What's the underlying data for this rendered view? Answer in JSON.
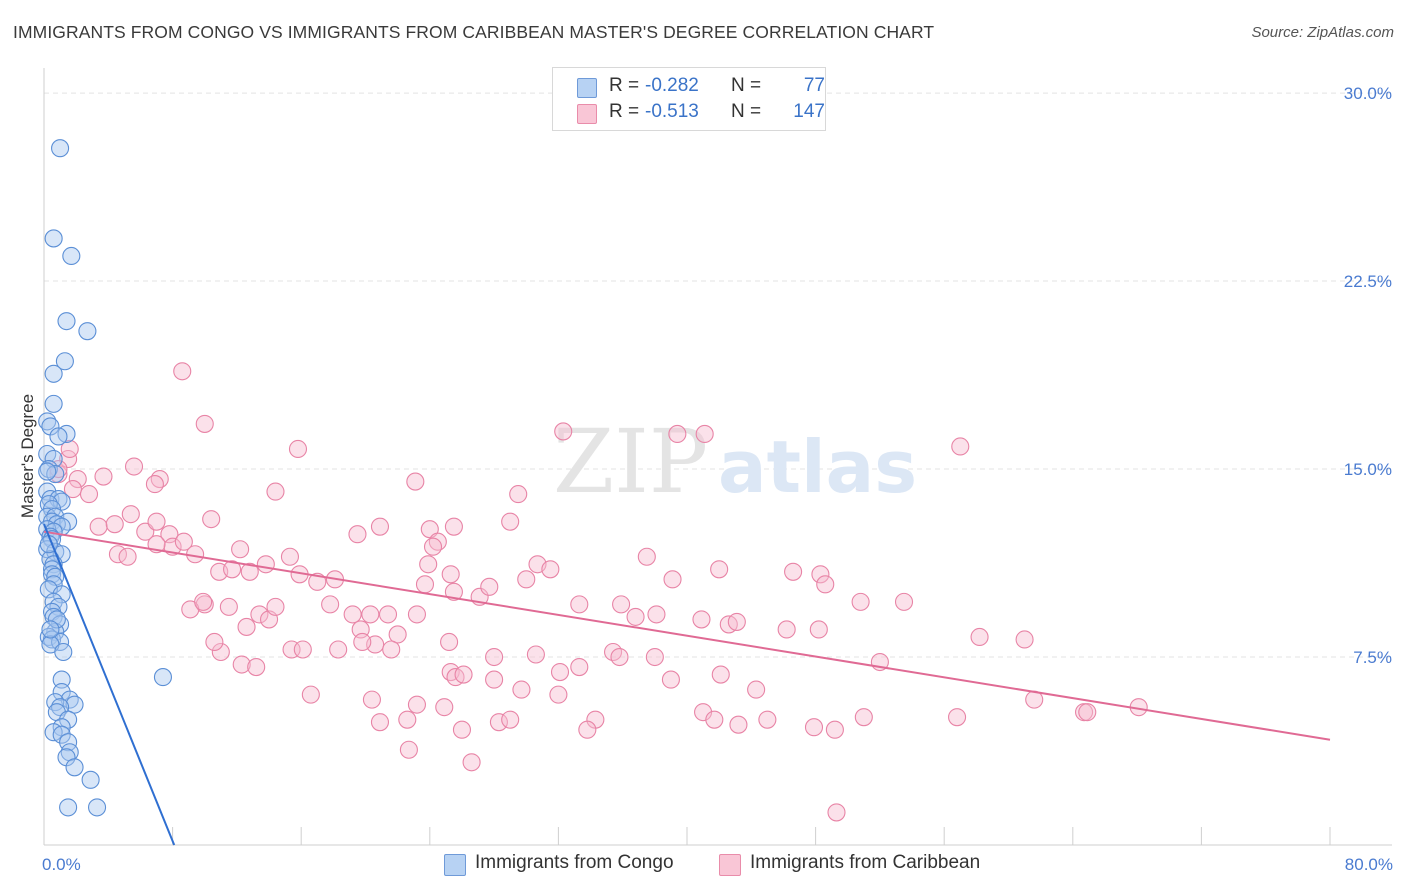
{
  "title": "IMMIGRANTS FROM CONGO VS IMMIGRANTS FROM CARIBBEAN MASTER'S DEGREE CORRELATION CHART",
  "source": "Source: ZipAtlas.com",
  "watermark": {
    "zip": "ZIP",
    "atlas": "atlas"
  },
  "legend_top": {
    "series1": {
      "r_label": "R =",
      "r_value": "-0.282",
      "n_label": "N =",
      "n_value": "77"
    },
    "series2": {
      "r_label": "R =",
      "r_value": "-0.513",
      "n_label": "N =",
      "n_value": "147"
    }
  },
  "legend_bottom": {
    "series1": "Immigrants from Congo",
    "series2": "Immigrants from Caribbean"
  },
  "colors": {
    "congo_fill": "#a9c8f0",
    "congo_stroke": "#5b8fd6",
    "congo_line": "#2f6fd1",
    "carib_fill": "#f7bcd0",
    "carib_stroke": "#e884a6",
    "carib_line": "#e06a94",
    "grid": "#e3e3e3",
    "tick_text": "#4a7bd0"
  },
  "chart_data": {
    "type": "scatter",
    "title": "IMMIGRANTS FROM CONGO VS IMMIGRANTS FROM CARIBBEAN MASTER'S DEGREE CORRELATION CHART",
    "xlabel": "",
    "ylabel": "Master's Degree",
    "xlim": [
      0,
      80
    ],
    "ylim": [
      0,
      31
    ],
    "x_tick_labels": [
      {
        "value": 0,
        "label": "0.0%"
      },
      {
        "value": 80,
        "label": "80.0%"
      }
    ],
    "y_tick_labels": [
      {
        "value": 7.5,
        "label": "7.5%"
      },
      {
        "value": 15,
        "label": "15.0%"
      },
      {
        "value": 22.5,
        "label": "22.5%"
      },
      {
        "value": 30,
        "label": "30.0%"
      }
    ],
    "x_minor_ticks": [
      0,
      8,
      16,
      24,
      32,
      40,
      48,
      56,
      64,
      72,
      80
    ],
    "y_gridlines": [
      7.5,
      15,
      22.5,
      30
    ],
    "series": [
      {
        "name": "Immigrants from Congo",
        "r": -0.282,
        "n": 77,
        "trend": {
          "x": [
            0,
            8.1
          ],
          "y": [
            12.8,
            0
          ]
        },
        "points": [
          [
            1.0,
            27.8
          ],
          [
            0.6,
            24.2
          ],
          [
            1.7,
            23.5
          ],
          [
            1.4,
            20.9
          ],
          [
            2.7,
            20.5
          ],
          [
            1.3,
            19.3
          ],
          [
            0.6,
            18.8
          ],
          [
            0.6,
            17.6
          ],
          [
            0.2,
            16.9
          ],
          [
            0.4,
            16.7
          ],
          [
            1.4,
            16.4
          ],
          [
            0.9,
            16.3
          ],
          [
            0.2,
            15.6
          ],
          [
            0.6,
            15.4
          ],
          [
            0.3,
            15.0
          ],
          [
            0.7,
            14.8
          ],
          [
            0.2,
            14.1
          ],
          [
            0.4,
            13.8
          ],
          [
            0.9,
            13.8
          ],
          [
            1.1,
            13.7
          ],
          [
            0.3,
            13.6
          ],
          [
            0.5,
            13.4
          ],
          [
            0.2,
            13.1
          ],
          [
            0.7,
            13.1
          ],
          [
            0.5,
            12.9
          ],
          [
            1.5,
            12.9
          ],
          [
            0.8,
            12.8
          ],
          [
            1.1,
            12.7
          ],
          [
            0.2,
            12.6
          ],
          [
            0.6,
            12.5
          ],
          [
            0.4,
            12.3
          ],
          [
            0.5,
            12.2
          ],
          [
            0.2,
            11.8
          ],
          [
            0.7,
            11.7
          ],
          [
            1.1,
            11.6
          ],
          [
            0.4,
            11.4
          ],
          [
            0.6,
            11.2
          ],
          [
            0.5,
            11.0
          ],
          [
            0.5,
            10.8
          ],
          [
            0.7,
            10.7
          ],
          [
            0.6,
            10.4
          ],
          [
            0.3,
            10.2
          ],
          [
            1.1,
            10.0
          ],
          [
            0.6,
            9.7
          ],
          [
            0.9,
            9.5
          ],
          [
            0.5,
            9.3
          ],
          [
            0.6,
            9.1
          ],
          [
            1.0,
            8.8
          ],
          [
            0.7,
            8.5
          ],
          [
            0.3,
            8.3
          ],
          [
            0.5,
            8.2
          ],
          [
            1.0,
            8.1
          ],
          [
            0.4,
            8.0
          ],
          [
            1.2,
            7.7
          ],
          [
            7.4,
            6.7
          ],
          [
            1.1,
            6.6
          ],
          [
            1.1,
            6.1
          ],
          [
            1.6,
            5.8
          ],
          [
            0.7,
            5.7
          ],
          [
            1.9,
            5.6
          ],
          [
            1.0,
            5.5
          ],
          [
            0.8,
            5.3
          ],
          [
            1.5,
            5.0
          ],
          [
            1.1,
            4.7
          ],
          [
            0.6,
            4.5
          ],
          [
            1.1,
            4.4
          ],
          [
            1.5,
            4.1
          ],
          [
            1.6,
            3.7
          ],
          [
            1.4,
            3.5
          ],
          [
            1.9,
            3.1
          ],
          [
            2.9,
            2.6
          ],
          [
            1.5,
            1.5
          ],
          [
            3.3,
            1.5
          ],
          [
            0.2,
            14.9
          ],
          [
            0.3,
            12.0
          ],
          [
            0.8,
            9.0
          ],
          [
            0.4,
            8.6
          ]
        ]
      },
      {
        "name": "Immigrants from Caribbean",
        "r": -0.513,
        "n": 147,
        "trend": {
          "x": [
            0,
            80
          ],
          "y": [
            12.5,
            4.2
          ]
        },
        "points": [
          [
            8.6,
            18.9
          ],
          [
            10.0,
            16.8
          ],
          [
            15.8,
            15.8
          ],
          [
            32.3,
            16.5
          ],
          [
            41.1,
            16.4
          ],
          [
            57.0,
            15.9
          ],
          [
            0.9,
            14.8
          ],
          [
            1.5,
            15.4
          ],
          [
            1.6,
            15.8
          ],
          [
            0.9,
            15.0
          ],
          [
            2.1,
            14.6
          ],
          [
            1.8,
            14.2
          ],
          [
            2.8,
            14.0
          ],
          [
            3.7,
            14.7
          ],
          [
            5.6,
            15.1
          ],
          [
            7.2,
            14.6
          ],
          [
            6.9,
            14.4
          ],
          [
            14.4,
            14.1
          ],
          [
            23.1,
            14.5
          ],
          [
            29.5,
            14.0
          ],
          [
            3.4,
            12.7
          ],
          [
            4.4,
            12.8
          ],
          [
            4.6,
            11.6
          ],
          [
            5.4,
            13.2
          ],
          [
            6.3,
            12.5
          ],
          [
            7.0,
            12.9
          ],
          [
            7.8,
            12.4
          ],
          [
            8.0,
            11.9
          ],
          [
            8.7,
            12.1
          ],
          [
            9.4,
            11.6
          ],
          [
            10.4,
            13.0
          ],
          [
            12.2,
            11.8
          ],
          [
            10.9,
            10.9
          ],
          [
            11.7,
            11.0
          ],
          [
            13.8,
            11.2
          ],
          [
            12.8,
            10.9
          ],
          [
            15.3,
            11.5
          ],
          [
            15.9,
            10.8
          ],
          [
            17.0,
            10.5
          ],
          [
            18.1,
            10.6
          ],
          [
            19.5,
            12.4
          ],
          [
            20.9,
            12.7
          ],
          [
            24.0,
            12.6
          ],
          [
            24.5,
            12.1
          ],
          [
            23.9,
            11.2
          ],
          [
            25.3,
            10.8
          ],
          [
            29.0,
            12.9
          ],
          [
            37.5,
            11.5
          ],
          [
            39.1,
            10.6
          ],
          [
            42.0,
            11.0
          ],
          [
            48.3,
            10.8
          ],
          [
            46.6,
            10.9
          ],
          [
            48.6,
            10.4
          ],
          [
            11.5,
            9.5
          ],
          [
            10.0,
            9.6
          ],
          [
            9.1,
            9.4
          ],
          [
            12.6,
            8.7
          ],
          [
            13.4,
            9.2
          ],
          [
            14.0,
            9.0
          ],
          [
            14.4,
            9.5
          ],
          [
            17.8,
            9.6
          ],
          [
            19.2,
            9.2
          ],
          [
            20.3,
            9.2
          ],
          [
            21.4,
            9.2
          ],
          [
            23.2,
            9.2
          ],
          [
            19.7,
            8.6
          ],
          [
            22.0,
            8.4
          ],
          [
            25.5,
            10.1
          ],
          [
            27.1,
            9.9
          ],
          [
            27.7,
            10.3
          ],
          [
            30.0,
            10.6
          ],
          [
            33.3,
            9.6
          ],
          [
            35.9,
            9.6
          ],
          [
            38.1,
            9.2
          ],
          [
            36.8,
            9.1
          ],
          [
            40.9,
            9.0
          ],
          [
            42.6,
            8.8
          ],
          [
            43.1,
            8.9
          ],
          [
            46.2,
            8.6
          ],
          [
            48.2,
            8.6
          ],
          [
            50.8,
            9.7
          ],
          [
            53.5,
            9.7
          ],
          [
            58.2,
            8.3
          ],
          [
            61.0,
            8.2
          ],
          [
            5.2,
            11.5
          ],
          [
            7.0,
            12.0
          ],
          [
            9.9,
            9.7
          ],
          [
            12.3,
            7.2
          ],
          [
            13.2,
            7.1
          ],
          [
            11.0,
            7.7
          ],
          [
            10.6,
            8.1
          ],
          [
            15.4,
            7.8
          ],
          [
            16.1,
            7.8
          ],
          [
            18.3,
            7.8
          ],
          [
            20.6,
            8.0
          ],
          [
            21.6,
            7.8
          ],
          [
            19.8,
            8.1
          ],
          [
            25.2,
            8.1
          ],
          [
            28.0,
            7.5
          ],
          [
            30.6,
            7.6
          ],
          [
            32.1,
            6.9
          ],
          [
            33.3,
            7.1
          ],
          [
            35.4,
            7.7
          ],
          [
            35.8,
            7.5
          ],
          [
            38.0,
            7.5
          ],
          [
            39.0,
            6.6
          ],
          [
            42.1,
            6.8
          ],
          [
            44.3,
            6.2
          ],
          [
            52.0,
            7.3
          ],
          [
            25.3,
            6.9
          ],
          [
            25.6,
            6.7
          ],
          [
            26.1,
            6.8
          ],
          [
            28.0,
            6.6
          ],
          [
            29.7,
            6.2
          ],
          [
            32.0,
            6.0
          ],
          [
            16.6,
            6.0
          ],
          [
            20.4,
            5.8
          ],
          [
            23.2,
            5.6
          ],
          [
            24.9,
            5.5
          ],
          [
            41.0,
            5.3
          ],
          [
            41.7,
            5.0
          ],
          [
            43.2,
            4.8
          ],
          [
            45.0,
            5.0
          ],
          [
            28.3,
            4.9
          ],
          [
            29.0,
            5.0
          ],
          [
            34.3,
            5.0
          ],
          [
            33.8,
            4.6
          ],
          [
            26.0,
            4.6
          ],
          [
            22.6,
            5.0
          ],
          [
            20.9,
            4.9
          ],
          [
            22.7,
            3.8
          ],
          [
            26.6,
            3.3
          ],
          [
            47.9,
            4.7
          ],
          [
            49.2,
            4.6
          ],
          [
            51.0,
            5.1
          ],
          [
            61.6,
            5.8
          ],
          [
            64.7,
            5.3
          ],
          [
            64.9,
            5.3
          ],
          [
            68.1,
            5.5
          ],
          [
            56.8,
            5.1
          ],
          [
            49.3,
            1.3
          ],
          [
            25.5,
            12.7
          ],
          [
            39.4,
            16.4
          ],
          [
            24.2,
            11.9
          ],
          [
            30.7,
            11.2
          ],
          [
            31.5,
            11.0
          ],
          [
            23.7,
            10.4
          ]
        ]
      }
    ]
  }
}
